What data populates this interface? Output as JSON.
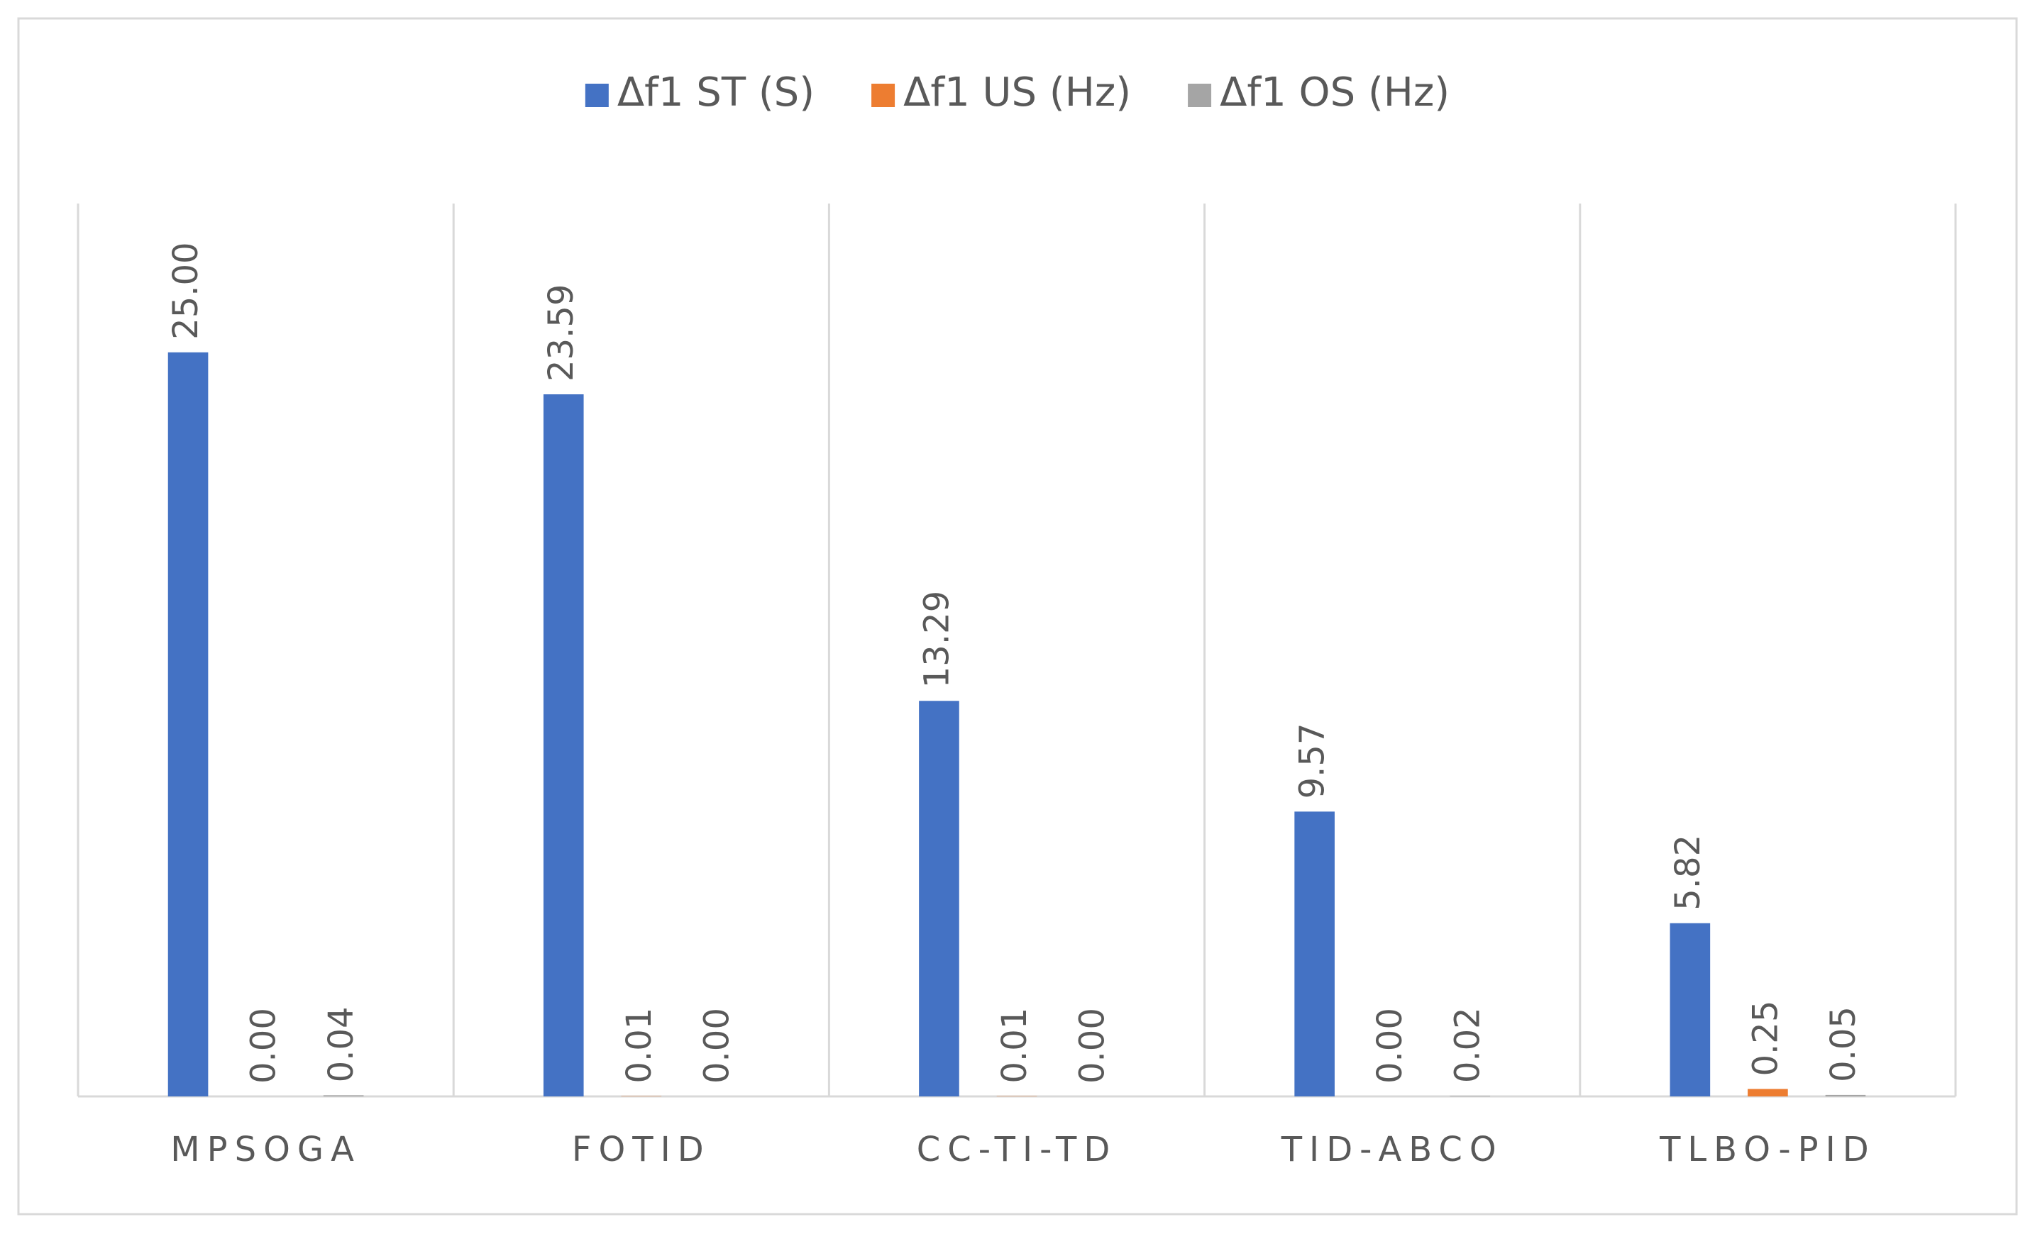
{
  "chart_data": {
    "type": "bar",
    "categories": [
      "MPSOGA",
      "FOTID",
      "CC-TI-TD",
      "TID-ABCO",
      "TLBO-PID"
    ],
    "series": [
      {
        "name": "Δf1 ST (S)",
        "color": "#4472c4",
        "values": [
          25,
          23.59,
          13.29,
          9.57,
          5.82
        ],
        "value_labels": [
          "25.00",
          "23.59",
          "13.29",
          "9.57",
          "5.82"
        ]
      },
      {
        "name": "Δf1 US (Hz)",
        "color": "#ed7d31",
        "values": [
          0,
          0.01,
          0.01,
          0,
          0.25
        ],
        "value_labels": [
          "0.00",
          "0.01",
          "0.01",
          "0.00",
          "0.25"
        ]
      },
      {
        "name": "Δf1 OS (Hz)",
        "color": "#a5a5a5",
        "values": [
          0.04,
          0,
          0,
          0.02,
          0.05
        ],
        "value_labels": [
          "0.04",
          "0.00",
          "0.00",
          "0.02",
          "0.05"
        ]
      }
    ],
    "ylim": [
      0,
      30
    ]
  }
}
